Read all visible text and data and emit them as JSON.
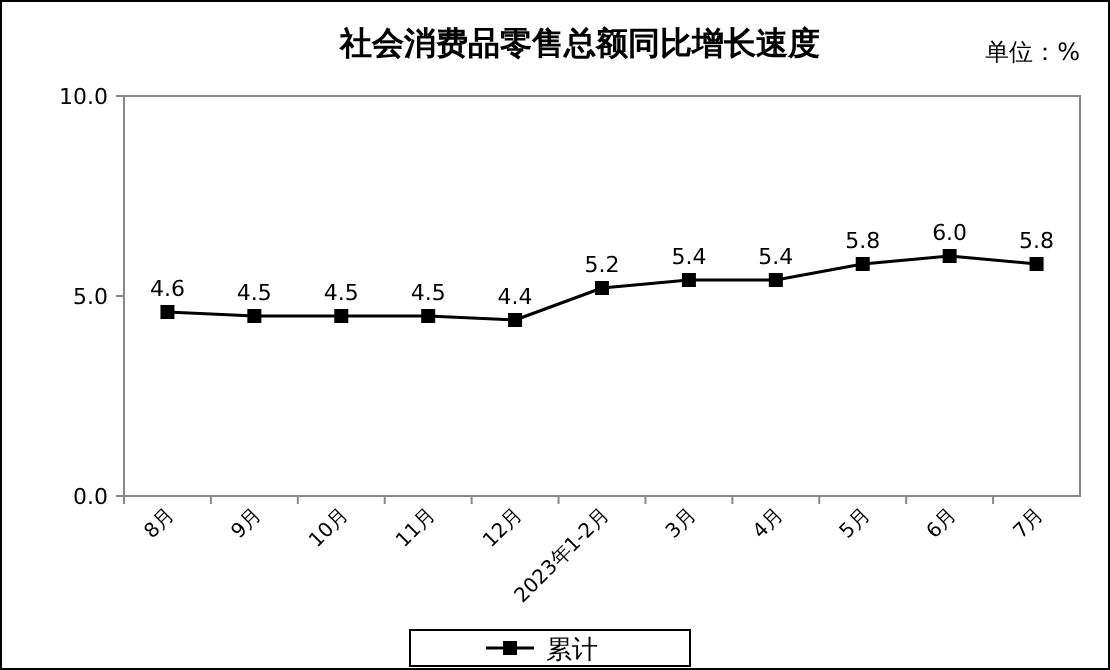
{
  "chart_data": {
    "type": "line",
    "title": "社会消费品零售总额同比增长速度",
    "annotations": [
      "单位：%"
    ],
    "categories": [
      "8月",
      "9月",
      "10月",
      "11月",
      "12月",
      "2023年1-2月",
      "3月",
      "4月",
      "5月",
      "6月",
      "7月"
    ],
    "series": [
      {
        "name": "累计",
        "color": "#000000",
        "values": [
          4.6,
          4.5,
          4.5,
          4.5,
          4.4,
          5.2,
          5.4,
          5.4,
          5.8,
          6.0,
          5.8
        ]
      }
    ],
    "ylim": [
      0,
      10
    ],
    "yticks": [
      {
        "value": 0,
        "label": "0.0"
      },
      {
        "value": 5,
        "label": "5.0"
      },
      {
        "value": 10,
        "label": "10.0"
      }
    ],
    "value_labels": [
      "4.6",
      "4.5",
      "4.5",
      "4.5",
      "4.4",
      "5.2",
      "5.4",
      "5.4",
      "5.8",
      "6.0",
      "5.8"
    ],
    "marker": "square",
    "line_style": "solid",
    "legend": "bottom",
    "grid": false
  }
}
